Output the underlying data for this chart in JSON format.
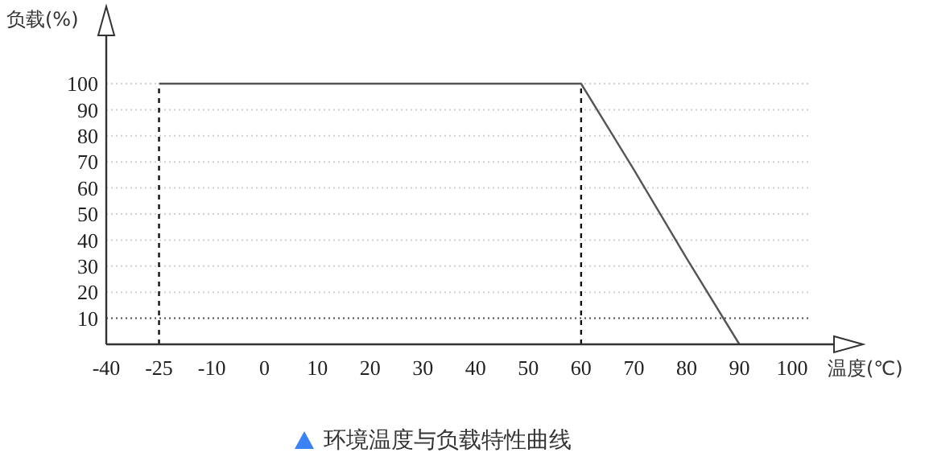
{
  "chart_data": {
    "type": "line",
    "title": "环境温度与负载特性曲线",
    "xlabel": "温度(℃)",
    "ylabel": "负载(%)",
    "categories": [
      "-40",
      "-25",
      "-10",
      "0",
      "10",
      "20",
      "30",
      "40",
      "50",
      "60",
      "70",
      "80",
      "90",
      "100"
    ],
    "series": [
      {
        "color": "#555555",
        "values": [
          null,
          100,
          100,
          100,
          100,
          100,
          100,
          100,
          100,
          100,
          67,
          33,
          0,
          null
        ]
      }
    ],
    "ylim": [
      0,
      100
    ],
    "yticks": [
      10,
      20,
      30,
      40,
      50,
      60,
      70,
      80,
      90,
      100
    ],
    "grid": "y",
    "line_style": "solid",
    "ref_lines": [
      {
        "axis": "x",
        "value": "-25",
        "line_style": "dashed",
        "color": "#111111"
      },
      {
        "axis": "x",
        "value": "60",
        "line_style": "dashed",
        "color": "#111111"
      },
      {
        "axis": "y",
        "value": 10,
        "line_style": "dotted",
        "color": "#555555"
      }
    ]
  }
}
